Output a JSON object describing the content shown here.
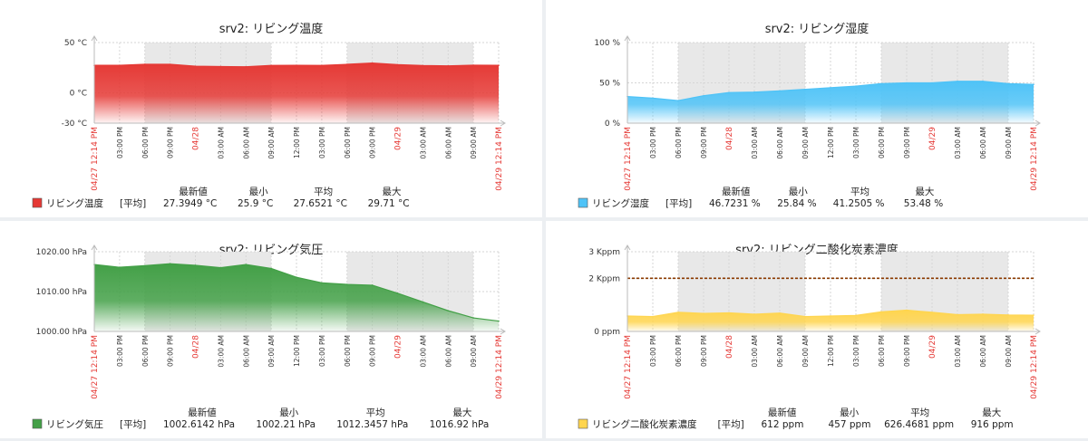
{
  "chart_data": [
    {
      "type": "area",
      "title": "srv2: リビング温度",
      "y_ticks": [
        "50 °C",
        "0 °C",
        "-30 °C"
      ],
      "y_tick_values": [
        50,
        0,
        -30
      ],
      "ylim": [
        -30,
        50
      ],
      "color": "#e53935",
      "series": [
        {
          "name": "リビング温度",
          "x": [
            "04/27 12:14 PM",
            "03:00 PM",
            "06:00 PM",
            "09:00 PM",
            "04/28",
            "03:00 AM",
            "06:00 AM",
            "09:00 AM",
            "12:00 PM",
            "03:00 PM",
            "06:00 PM",
            "09:00 PM",
            "04/29",
            "03:00 AM",
            "06:00 AM",
            "09:00 AM",
            "04/29 12:14 PM"
          ],
          "values": [
            27.4,
            27.4,
            28.5,
            28.4,
            26.5,
            26.2,
            26.0,
            27.3,
            27.4,
            27.3,
            28.4,
            29.7,
            28.1,
            27.2,
            26.9,
            27.5,
            27.4
          ]
        }
      ],
      "legend": {
        "label": "リビング温度",
        "func": "[平均]",
        "latest": "27.3949 °C",
        "min": "25.9 °C",
        "avg": "27.6521 °C",
        "max": "29.71 °C"
      }
    },
    {
      "type": "area",
      "title": "srv2: リビング湿度",
      "y_ticks": [
        "100 %",
        "50 %",
        "0 %"
      ],
      "y_tick_values": [
        100,
        50,
        0
      ],
      "ylim": [
        0,
        100
      ],
      "color": "#4fc3f7",
      "series": [
        {
          "name": "リビング湿度",
          "x": [
            "04/27 12:14 PM",
            "03:00 PM",
            "06:00 PM",
            "09:00 PM",
            "04/28",
            "03:00 AM",
            "06:00 AM",
            "09:00 AM",
            "12:00 PM",
            "03:00 PM",
            "06:00 PM",
            "09:00 PM",
            "04/29",
            "03:00 AM",
            "06:00 AM",
            "09:00 AM",
            "04/29 12:14 PM"
          ],
          "values": [
            33,
            31,
            28,
            34,
            38,
            38.5,
            40,
            42,
            44,
            46,
            49,
            50,
            50,
            52,
            52,
            49,
            48
          ]
        }
      ],
      "legend": {
        "label": "リビング湿度",
        "func": "[平均]",
        "latest": "46.7231 %",
        "min": "25.84 %",
        "avg": "41.2505 %",
        "max": "53.48 %"
      }
    },
    {
      "type": "area",
      "title": "srv2: リビング気圧",
      "y_ticks": [
        "1020.00 hPa",
        "1010.00 hPa",
        "1000.00 hPa"
      ],
      "y_tick_values": [
        1020,
        1010,
        1000
      ],
      "ylim": [
        1000,
        1020
      ],
      "color": "#43a047",
      "series": [
        {
          "name": "リビング気圧",
          "x": [
            "04/27 12:14 PM",
            "03:00 PM",
            "06:00 PM",
            "09:00 PM",
            "04/28",
            "03:00 AM",
            "06:00 AM",
            "09:00 AM",
            "12:00 PM",
            "03:00 PM",
            "06:00 PM",
            "09:00 PM",
            "04/29",
            "03:00 AM",
            "06:00 AM",
            "09:00 AM",
            "04/29 12:14 PM"
          ],
          "values": [
            1016.8,
            1016.1,
            1016.5,
            1017.0,
            1016.6,
            1016.0,
            1016.8,
            1015.8,
            1013.6,
            1012.2,
            1011.8,
            1011.6,
            1009.6,
            1007.4,
            1005.2,
            1003.4,
            1002.6
          ]
        }
      ],
      "legend": {
        "label": "リビング気圧",
        "func": "[平均]",
        "latest": "1002.6142 hPa",
        "min": "1002.21 hPa",
        "avg": "1012.3457 hPa",
        "max": "1016.92 hPa"
      }
    },
    {
      "type": "area",
      "title": "srv2: リビング二酸化炭素濃度",
      "y_ticks": [
        "3 Kppm",
        "2 Kppm",
        "0 ppm"
      ],
      "y_tick_values": [
        3000,
        2000,
        0
      ],
      "ylim": [
        0,
        3000
      ],
      "color": "#ffd54f",
      "threshold": 2000,
      "threshold_color": "#8b3a00",
      "series": [
        {
          "name": "リビング二酸化炭素濃度",
          "x": [
            "04/27 12:14 PM",
            "03:00 PM",
            "06:00 PM",
            "09:00 PM",
            "04/28",
            "03:00 AM",
            "06:00 AM",
            "09:00 AM",
            "12:00 PM",
            "03:00 PM",
            "06:00 PM",
            "09:00 PM",
            "04/29",
            "03:00 AM",
            "06:00 AM",
            "09:00 AM",
            "04/29 12:14 PM"
          ],
          "values": [
            580,
            560,
            720,
            680,
            700,
            650,
            690,
            560,
            580,
            600,
            740,
            800,
            720,
            630,
            650,
            620,
            612
          ]
        }
      ],
      "legend": {
        "label": "リビング二酸化炭素濃度",
        "func": "[平均]",
        "latest": "612 ppm",
        "min": "457 ppm",
        "avg": "626.4681 ppm",
        "max": "916 ppm"
      }
    }
  ],
  "x_ticks": [
    "04/27 12:14 PM",
    "03:00 PM",
    "06:00 PM",
    "09:00 PM",
    "04/28",
    "03:00 AM",
    "06:00 AM",
    "09:00 AM",
    "12:00 PM",
    "03:00 PM",
    "06:00 PM",
    "09:00 PM",
    "04/29",
    "03:00 AM",
    "06:00 AM",
    "09:00 AM",
    "04/29 12:14 PM"
  ],
  "x_tick_red": [
    true,
    false,
    false,
    false,
    true,
    false,
    false,
    false,
    false,
    false,
    false,
    false,
    true,
    false,
    false,
    false,
    true
  ],
  "legend_headers": {
    "latest": "最新値",
    "min": "最小",
    "avg": "平均",
    "max": "最大"
  },
  "colors": {
    "grid": "#d6d6d6",
    "tick_text": "#333333",
    "tick_red": "#e53935",
    "night_band": "#e8e8e8"
  }
}
